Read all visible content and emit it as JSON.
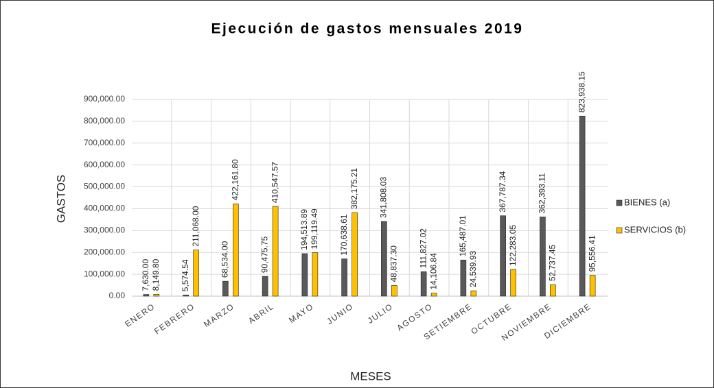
{
  "chart_data": {
    "type": "bar",
    "title": "Ejecución de gastos mensuales 2019",
    "x_label": "MESES",
    "y_label": "GASTOS",
    "categories": [
      "ENERO",
      "FEBRERO",
      "MARZO",
      "ABRIL",
      "MAYO",
      "JUNIO",
      "JULIO",
      "AGOSTO",
      "SETIEMBRE",
      "OCTUBRE",
      "NOVIEMBRE",
      "DICIEMBRE"
    ],
    "series": [
      {
        "name": "BIENES (a)",
        "color": "#595959",
        "values": [
          7630.0,
          5574.54,
          68534.0,
          90475.75,
          194513.89,
          170638.61,
          341808.03,
          111827.02,
          165487.01,
          367787.34,
          362393.11,
          823938.15
        ],
        "value_labels": [
          "7,630.00",
          "5,574.54",
          "68,534.00",
          "90,475.75",
          "194,513.89",
          "170,638.61",
          "341,808.03",
          "111,827.02",
          "165,487.01",
          "367,787.34",
          "362,393.11",
          "823,938.15"
        ]
      },
      {
        "name": "SERVICIOS (b)",
        "color": "#ffc000",
        "values": [
          8149.8,
          211068.0,
          422161.8,
          410547.57,
          199119.49,
          382175.21,
          48837.3,
          14106.84,
          24539.93,
          122283.05,
          52737.45,
          95556.41
        ],
        "value_labels": [
          "8,149.80",
          "211,068.00",
          "422,161.80",
          "410,547.57",
          "199,119.49",
          "382,175.21",
          "48,837.30",
          "14,106.84",
          "24,539.93",
          "122,283.05",
          "52,737.45",
          "95,556.41"
        ]
      }
    ],
    "ylim": [
      0,
      900000
    ],
    "yticks": [
      {
        "value": 0,
        "label": "0.00"
      },
      {
        "value": 100000,
        "label": "100,000.00"
      },
      {
        "value": 200000,
        "label": "200,000.00"
      },
      {
        "value": 300000,
        "label": "300,000.00"
      },
      {
        "value": 400000,
        "label": "400,000.00"
      },
      {
        "value": 500000,
        "label": "500,000.00"
      },
      {
        "value": 600000,
        "label": "600,000.00"
      },
      {
        "value": 700000,
        "label": "700,000.00"
      },
      {
        "value": 800000,
        "label": "800,000.00"
      },
      {
        "value": 900000,
        "label": "900,000.00"
      }
    ],
    "grid": true,
    "legend": "right"
  }
}
